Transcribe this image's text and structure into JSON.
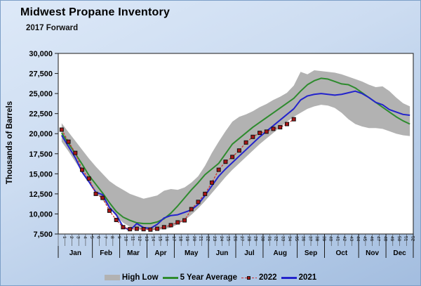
{
  "header": {
    "title": "Midwest Propane Inventory",
    "subtitle": "2017 Forward"
  },
  "chart_data": {
    "type": "line",
    "title": "Midwest Propane Inventory",
    "subtitle": "2017 Forward",
    "xlabel": "",
    "ylabel": "Thousands of Barrels",
    "ylim": [
      7500,
      30000
    ],
    "ytick_step": 2500,
    "ytick_labels": [
      "7,500",
      "10,000",
      "12,500",
      "15,000",
      "17,500",
      "20,000",
      "22,500",
      "25,000",
      "27,500",
      "30,000"
    ],
    "grid": false,
    "legend_position": "bottom",
    "weeks": [
      1,
      2,
      3,
      4,
      5,
      6,
      7,
      8,
      9,
      10,
      11,
      12,
      13,
      14,
      15,
      16,
      17,
      18,
      19,
      20,
      21,
      22,
      23,
      24,
      25,
      26,
      27,
      28,
      29,
      30,
      31,
      32,
      33,
      34,
      35,
      36,
      37,
      38,
      39,
      40,
      41,
      42,
      43,
      44,
      45,
      46,
      47,
      48,
      49,
      50,
      51,
      52
    ],
    "months": [
      {
        "label": "Jan",
        "weeks": 5
      },
      {
        "label": "Feb",
        "weeks": 4
      },
      {
        "label": "Mar",
        "weeks": 4
      },
      {
        "label": "Apr",
        "weeks": 4
      },
      {
        "label": "May",
        "weeks": 5
      },
      {
        "label": "Jun",
        "weeks": 4
      },
      {
        "label": "Jul",
        "weeks": 4
      },
      {
        "label": "Aug",
        "weeks": 5
      },
      {
        "label": "Sep",
        "weeks": 4
      },
      {
        "label": "Oct",
        "weeks": 5
      },
      {
        "label": "Nov",
        "weeks": 4
      },
      {
        "label": "Dec",
        "weeks": 4
      }
    ],
    "series": [
      {
        "name": "High Low",
        "type": "band",
        "color": "#b2b2b2",
        "upper": [
          21300,
          20200,
          19100,
          18000,
          16900,
          15900,
          15000,
          14100,
          13500,
          13000,
          12500,
          12200,
          11900,
          12100,
          12300,
          12900,
          13100,
          13000,
          13300,
          13900,
          14700,
          16000,
          17600,
          19000,
          20300,
          21500,
          22100,
          22400,
          22800,
          23300,
          23700,
          24200,
          24600,
          25100,
          26000,
          27700,
          27400,
          27900,
          27800,
          27700,
          27600,
          27400,
          27100,
          26800,
          26500,
          26100,
          25800,
          25900,
          25300,
          24500,
          23800,
          23400
        ],
        "lower": [
          19000,
          17800,
          16500,
          15200,
          13900,
          12700,
          11700,
          10700,
          9700,
          8900,
          8400,
          8200,
          8100,
          8000,
          8000,
          8100,
          8300,
          8700,
          9200,
          9900,
          10700,
          11600,
          12600,
          13600,
          14600,
          15500,
          16300,
          17100,
          17900,
          18700,
          19400,
          20100,
          20800,
          21500,
          22100,
          22600,
          23100,
          23400,
          23600,
          23500,
          23200,
          22600,
          21800,
          21200,
          20900,
          20700,
          20700,
          20600,
          20300,
          20000,
          19800,
          19700
        ]
      },
      {
        "name": "5 Year Average",
        "type": "line",
        "color": "#2e8b2e",
        "values": [
          20100,
          18800,
          17500,
          16200,
          14800,
          13700,
          12600,
          11400,
          10300,
          9600,
          9200,
          8900,
          8800,
          8800,
          9000,
          9400,
          10100,
          11000,
          12000,
          13000,
          13900,
          14900,
          15600,
          16300,
          17500,
          18700,
          19400,
          20100,
          20800,
          21400,
          22000,
          22600,
          23200,
          23800,
          24400,
          25300,
          26100,
          26600,
          26900,
          26800,
          26500,
          26200,
          26100,
          25700,
          25100,
          24500,
          23900,
          23300,
          22700,
          22100,
          21600,
          21200
        ]
      },
      {
        "name": "2022",
        "type": "line-marker",
        "color": "#cc3333",
        "marker_fill": "#aa1616",
        "marker_stroke": "#111111",
        "dashed": true,
        "values": [
          20500,
          19000,
          17600,
          15500,
          14400,
          12500,
          12000,
          10400,
          9250,
          8350,
          8100,
          8150,
          8100,
          8050,
          8150,
          8350,
          8600,
          8950,
          9200,
          10600,
          11500,
          12500,
          13900,
          15500,
          16500,
          17100,
          17900,
          18900,
          19600,
          20100,
          20250,
          20600,
          20800,
          21200,
          21800
        ]
      },
      {
        "name": "2021",
        "type": "line",
        "color": "#2323cc",
        "values": [
          19800,
          18400,
          17000,
          15200,
          14000,
          12700,
          12400,
          10800,
          9900,
          8400,
          7950,
          8800,
          8300,
          8200,
          8700,
          9500,
          9800,
          9900,
          10200,
          10500,
          11200,
          12300,
          13500,
          14700,
          15600,
          16400,
          17200,
          18000,
          18800,
          19600,
          20300,
          21000,
          21700,
          22400,
          23100,
          24200,
          24700,
          24900,
          25000,
          24900,
          24800,
          24900,
          25100,
          25300,
          25000,
          24500,
          23900,
          23600,
          23000,
          22700,
          22400,
          22300
        ]
      }
    ]
  }
}
